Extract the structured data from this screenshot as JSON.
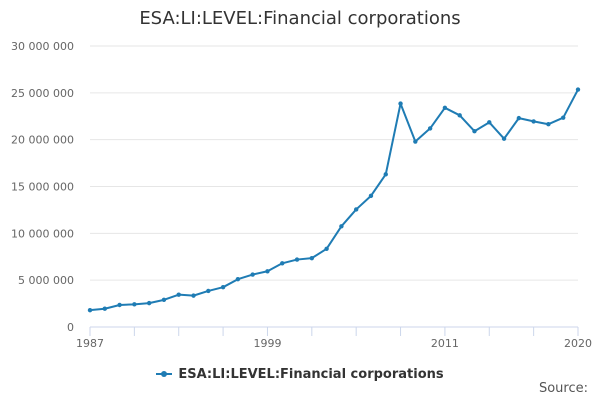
{
  "chart_data": {
    "type": "line",
    "title": "ESA:LI:LEVEL:Financial corporations",
    "x": [
      1987,
      1988,
      1989,
      1990,
      1991,
      1992,
      1993,
      1994,
      1995,
      1996,
      1997,
      1998,
      1999,
      2000,
      2001,
      2002,
      2003,
      2004,
      2005,
      2006,
      2007,
      2008,
      2009,
      2010,
      2011,
      2012,
      2013,
      2014,
      2015,
      2016,
      2017,
      2018,
      2019,
      2020
    ],
    "series": [
      {
        "name": "ESA:LI:LEVEL:Financial corporations",
        "values": [
          1800000,
          1950000,
          2350000,
          2420000,
          2550000,
          2900000,
          3450000,
          3350000,
          3850000,
          4250000,
          5100000,
          5600000,
          5950000,
          6800000,
          7200000,
          7350000,
          8350000,
          10750000,
          12550000,
          14000000,
          16300000,
          23850000,
          19800000,
          21200000,
          23400000,
          22600000,
          20900000,
          21850000,
          20100000,
          22300000,
          21950000,
          21650000,
          22350000,
          25350000
        ]
      }
    ],
    "xticks": [
      "1987",
      "1999",
      "2011",
      "2020"
    ],
    "yticks": [
      "0",
      "5 000 000",
      "10 000 000",
      "15 000 000",
      "20 000 000",
      "25 000 000",
      "30 000 000"
    ],
    "ylim": [
      0,
      30000000
    ],
    "xlim": [
      1987,
      2020
    ],
    "grid": true,
    "legend_position": "bottom",
    "color": "#1f7cb4"
  },
  "source_label": "Source:"
}
